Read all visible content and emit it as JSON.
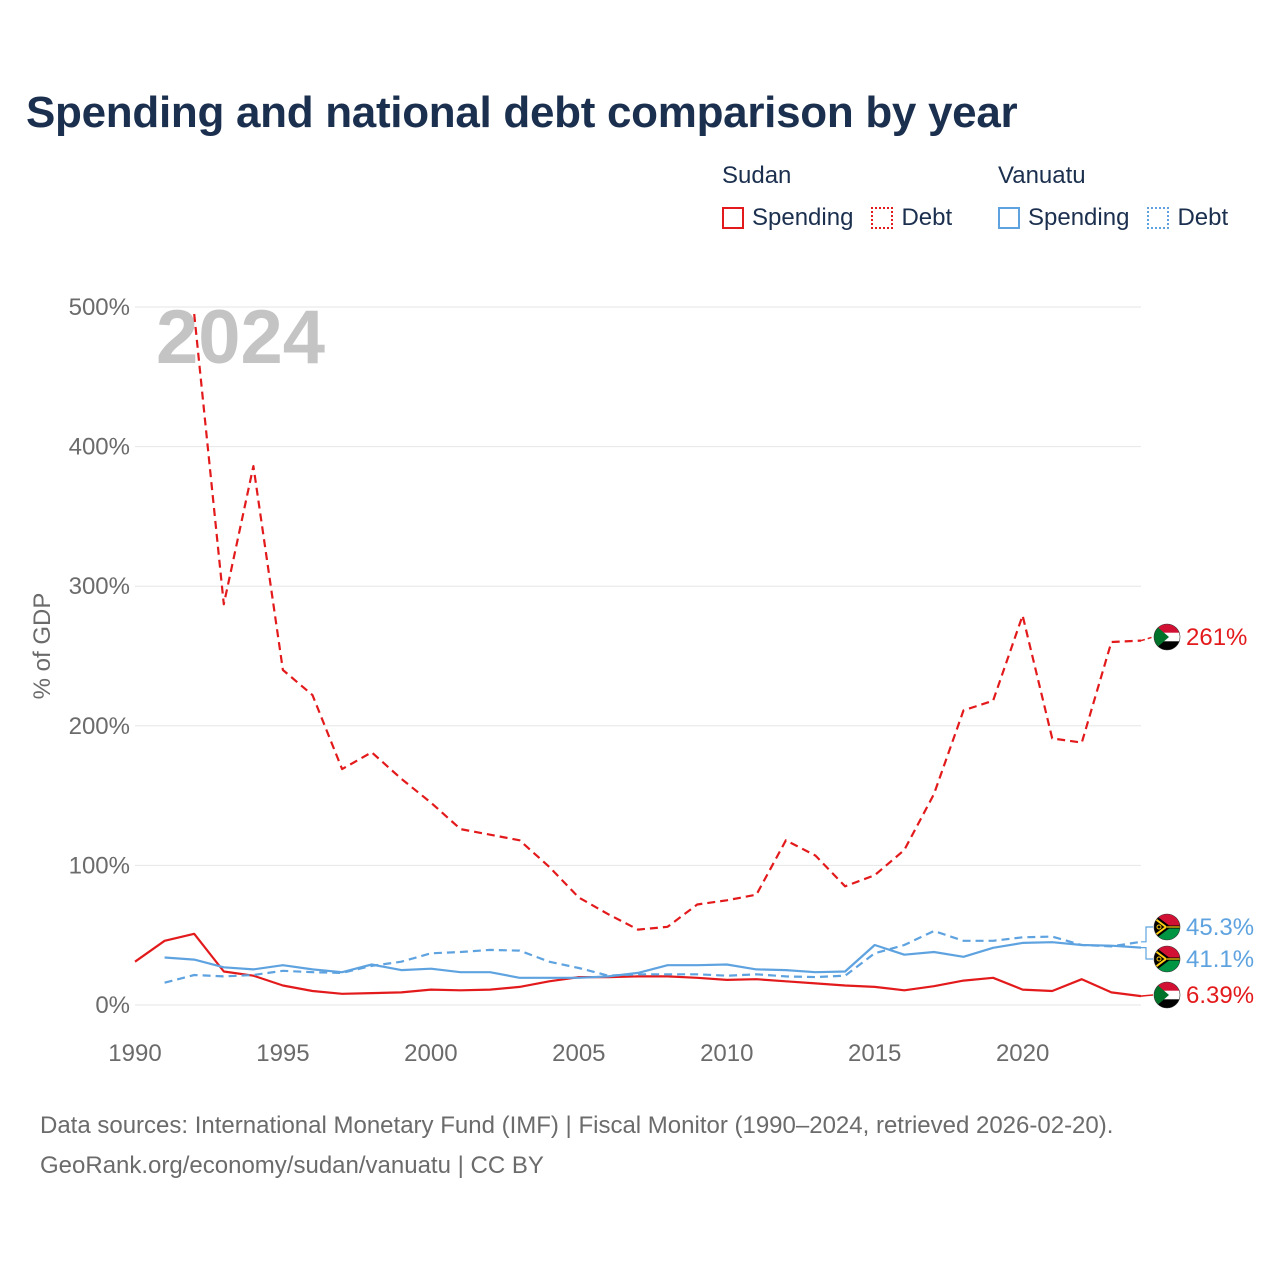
{
  "title": "Spending and national debt comparison by year",
  "legend": {
    "groups": [
      {
        "country": "Sudan",
        "color": "#e31a1c",
        "items": [
          {
            "label": "Spending",
            "style": "solid"
          },
          {
            "label": "Debt",
            "style": "dotted"
          }
        ]
      },
      {
        "country": "Vanuatu",
        "color": "#5ea3e0",
        "items": [
          {
            "label": "Spending",
            "style": "solid"
          },
          {
            "label": "Debt",
            "style": "dotted"
          }
        ]
      }
    ]
  },
  "year_watermark": "2024",
  "footer": {
    "line1": "Data sources: International Monetary Fund (IMF) | Fiscal Monitor (1990–2024, retrieved 2026-02-20).",
    "line2": "GeoRank.org/economy/sudan/vanuatu | CC BY"
  },
  "chart_data": {
    "type": "line",
    "title": "Spending and national debt comparison by year",
    "xlabel": "",
    "ylabel": "% of GDP",
    "xlim": [
      1990,
      2024
    ],
    "ylim": [
      0,
      500
    ],
    "x_ticks": [
      1990,
      1995,
      2000,
      2005,
      2010,
      2015,
      2020
    ],
    "y_ticks": [
      0,
      100,
      200,
      300,
      400,
      500
    ],
    "y_tick_labels": [
      "0%",
      "100%",
      "200%",
      "300%",
      "400%",
      "500%"
    ],
    "grid": true,
    "series": [
      {
        "name": "Sudan Debt",
        "country": "Sudan",
        "measure": "Debt",
        "color": "#e31a1c",
        "dash": "dashed",
        "x": [
          1992,
          1993,
          1994,
          1995,
          1996,
          1997,
          1998,
          1999,
          2000,
          2001,
          2002,
          2003,
          2004,
          2005,
          2006,
          2007,
          2008,
          2009,
          2010,
          2011,
          2012,
          2013,
          2014,
          2015,
          2016,
          2017,
          2018,
          2019,
          2020,
          2021,
          2022,
          2023,
          2024
        ],
        "values": [
          495,
          287,
          386,
          240,
          222,
          169,
          181,
          162,
          145,
          126,
          122,
          118,
          99,
          77,
          65,
          54,
          56,
          72,
          75,
          79,
          118,
          107,
          85,
          93,
          111,
          151,
          211,
          218,
          279,
          191,
          188,
          260,
          261
        ],
        "end_label": "261%"
      },
      {
        "name": "Sudan Spending",
        "country": "Sudan",
        "measure": "Spending",
        "color": "#e31a1c",
        "dash": "solid",
        "x": [
          1990,
          1991,
          1992,
          1993,
          1994,
          1995,
          1996,
          1997,
          1998,
          1999,
          2000,
          2001,
          2002,
          2003,
          2004,
          2005,
          2006,
          2007,
          2008,
          2009,
          2010,
          2011,
          2012,
          2013,
          2014,
          2015,
          2016,
          2017,
          2018,
          2019,
          2020,
          2021,
          2022,
          2023,
          2024
        ],
        "values": [
          31,
          46,
          51,
          24,
          21,
          14,
          10,
          8,
          8.5,
          9,
          11,
          10.5,
          11,
          13,
          17,
          20,
          20,
          20.5,
          20.5,
          19.5,
          18,
          18.5,
          17,
          15.5,
          14,
          13,
          10.5,
          13.5,
          17.5,
          19.5,
          11,
          10,
          18.5,
          9,
          6.39
        ],
        "end_label": "6.39%"
      },
      {
        "name": "Vanuatu Debt",
        "country": "Vanuatu",
        "measure": "Debt",
        "color": "#5ea3e0",
        "dash": "dashed",
        "x": [
          1991,
          1992,
          1993,
          1994,
          1995,
          1996,
          1997,
          1998,
          1999,
          2000,
          2001,
          2002,
          2003,
          2004,
          2005,
          2006,
          2007,
          2008,
          2009,
          2010,
          2011,
          2012,
          2013,
          2014,
          2015,
          2016,
          2017,
          2018,
          2019,
          2020,
          2021,
          2022,
          2023,
          2024
        ],
        "values": [
          16,
          21.5,
          20.5,
          21.5,
          24.5,
          23.5,
          23,
          28,
          31,
          37,
          38,
          39.5,
          39,
          31,
          26.5,
          21,
          22,
          22,
          22,
          21,
          22,
          20.5,
          20,
          21,
          37,
          43,
          53,
          46,
          46,
          48.5,
          49,
          43,
          42,
          45.3
        ],
        "end_label": "45.3%"
      },
      {
        "name": "Vanuatu Spending",
        "country": "Vanuatu",
        "measure": "Spending",
        "color": "#5ea3e0",
        "dash": "solid",
        "x": [
          1991,
          1992,
          1993,
          1994,
          1995,
          1996,
          1997,
          1998,
          1999,
          2000,
          2001,
          2002,
          2003,
          2004,
          2005,
          2006,
          2007,
          2008,
          2009,
          2010,
          2011,
          2012,
          2013,
          2014,
          2015,
          2016,
          2017,
          2018,
          2019,
          2020,
          2021,
          2022,
          2023,
          2024
        ],
        "values": [
          34,
          32.5,
          27,
          25.5,
          28.5,
          25.5,
          23.5,
          29,
          25,
          26,
          23.5,
          23.5,
          19.5,
          19.5,
          19.5,
          20.5,
          23,
          28.5,
          28.5,
          29,
          25.5,
          25,
          23.5,
          24,
          43,
          36,
          38,
          34.5,
          41,
          44.5,
          45,
          43,
          42.5,
          41.1
        ],
        "end_label": "41.1%"
      }
    ]
  }
}
